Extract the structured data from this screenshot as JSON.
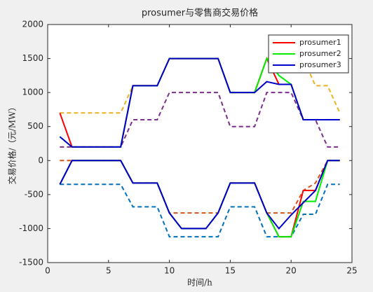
{
  "chart_data": {
    "type": "line",
    "title": "prosumer与零售商交易价格",
    "x_label": "时间/h",
    "y_label": "交易价格/（元/MW）",
    "x": [
      1,
      2,
      3,
      4,
      5,
      6,
      7,
      8,
      9,
      10,
      11,
      12,
      13,
      14,
      15,
      16,
      17,
      18,
      19,
      20,
      21,
      22,
      23,
      24
    ],
    "xlim": [
      0,
      25
    ],
    "xticks": [
      0,
      5,
      10,
      15,
      20,
      25
    ],
    "ylim": [
      -1500,
      2000
    ],
    "yticks": [
      -1500,
      -1000,
      -500,
      0,
      500,
      1000,
      1500,
      2000
    ],
    "grid": false,
    "legend_position": "upper-right",
    "series": [
      {
        "name": "prosumer1",
        "color": "#ff0000",
        "values": [
          700,
          200,
          200,
          200,
          200,
          200,
          1100,
          1100,
          1100,
          1500,
          1500,
          1500,
          1500,
          1500,
          1000,
          1000,
          1000,
          1500,
          1120,
          1120,
          600,
          600,
          600,
          600
        ],
        "lower_values": [
          -350,
          0,
          0,
          0,
          0,
          0,
          -330,
          -330,
          -330,
          -770,
          -1000,
          -1000,
          -1000,
          -770,
          -330,
          -330,
          -330,
          -770,
          -1120,
          -1120,
          -440,
          -440,
          0,
          0
        ]
      },
      {
        "name": "prosumer2",
        "color": "#00ee00",
        "values": [
          350,
          200,
          200,
          200,
          200,
          200,
          1100,
          1100,
          1100,
          1500,
          1500,
          1500,
          1500,
          1500,
          1000,
          1000,
          1000,
          1500,
          1250,
          1120,
          600,
          600,
          600,
          600
        ],
        "lower_values": [
          -350,
          0,
          0,
          0,
          0,
          0,
          -330,
          -330,
          -330,
          -770,
          -1000,
          -1000,
          -1000,
          -770,
          -330,
          -330,
          -330,
          -770,
          -1120,
          -1120,
          -600,
          -600,
          0,
          0
        ]
      },
      {
        "name": "prosumer3",
        "color": "#0000cc",
        "values": [
          350,
          200,
          200,
          200,
          200,
          200,
          1100,
          1100,
          1100,
          1500,
          1500,
          1500,
          1500,
          1500,
          1000,
          1000,
          1000,
          1160,
          1120,
          1120,
          600,
          600,
          600,
          600
        ],
        "lower_values": [
          -350,
          0,
          0,
          0,
          0,
          0,
          -330,
          -330,
          -330,
          -770,
          -1000,
          -1000,
          -1000,
          -770,
          -330,
          -330,
          -330,
          -770,
          -1000,
          -800,
          -620,
          -440,
          0,
          0
        ]
      }
    ],
    "reference_series": [
      {
        "color": "#edb120",
        "values": [
          700,
          700,
          700,
          700,
          700,
          700,
          1100,
          1100,
          1100,
          1500,
          1500,
          1500,
          1500,
          1500,
          1000,
          1000,
          1000,
          1500,
          1500,
          1500,
          1500,
          1100,
          1100,
          700
        ]
      },
      {
        "color": "#7e2f8e",
        "values": [
          200,
          200,
          200,
          200,
          200,
          200,
          600,
          600,
          600,
          1000,
          1000,
          1000,
          1000,
          1000,
          500,
          500,
          500,
          1000,
          1000,
          1000,
          600,
          600,
          200,
          200
        ]
      },
      {
        "color": "#d95319",
        "values": [
          0,
          0,
          0,
          0,
          0,
          0,
          -330,
          -330,
          -330,
          -770,
          -770,
          -770,
          -770,
          -770,
          -330,
          -330,
          -330,
          -770,
          -770,
          -770,
          -440,
          -330,
          0,
          0
        ]
      },
      {
        "color": "#0072bd",
        "values": [
          -350,
          -350,
          -350,
          -350,
          -350,
          -350,
          -680,
          -680,
          -680,
          -1120,
          -1120,
          -1120,
          -1120,
          -1120,
          -680,
          -680,
          -680,
          -1120,
          -1120,
          -1120,
          -790,
          -790,
          -350,
          -350
        ]
      }
    ]
  }
}
